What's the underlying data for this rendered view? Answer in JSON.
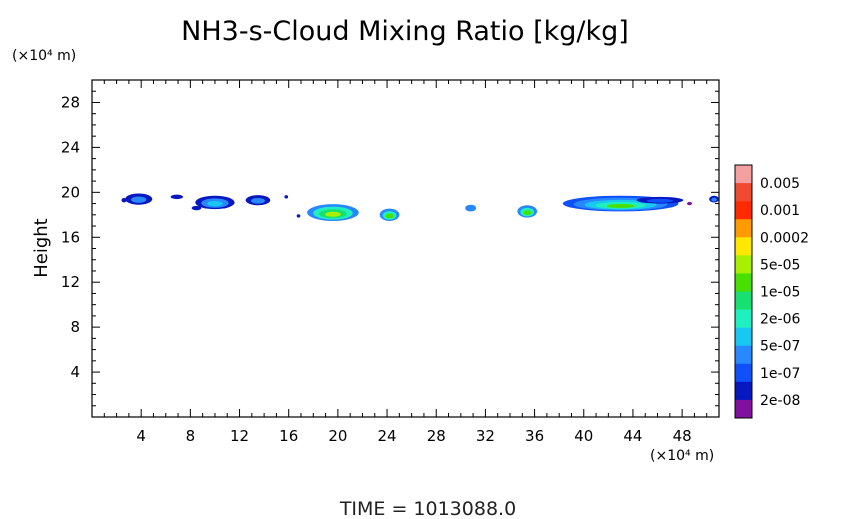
{
  "chart_data": {
    "type": "heatmap",
    "title": "NH3-s-Cloud Mixing Ratio [kg/kg]",
    "ylabel": "Height",
    "y_unit": "(×10⁴ m)",
    "x_unit": "(×10⁴ m)",
    "footer": "TIME  =  1013088.0",
    "xlim": [
      0,
      51
    ],
    "ylim": [
      0,
      30
    ],
    "x_ticks": [
      4,
      8,
      12,
      16,
      20,
      24,
      28,
      32,
      36,
      40,
      44,
      48
    ],
    "y_ticks": [
      4,
      8,
      12,
      16,
      20,
      24,
      28
    ],
    "colorbar": {
      "labels": [
        "0.005",
        "0.001",
        "0.0002",
        "5e-05",
        "1e-05",
        "2e-06",
        "5e-07",
        "1e-07",
        "2e-08"
      ],
      "colors": [
        "#f4a0a0",
        "#f04a30",
        "#ff2a00",
        "#ff9a00",
        "#ffe800",
        "#a8f000",
        "#48e000",
        "#18e070",
        "#20f0c0",
        "#18c8f0",
        "#2888ff",
        "#1050f8",
        "#0818c0",
        "#8010a0"
      ]
    },
    "features": [
      {
        "x": 3.8,
        "y": 19.4,
        "w": 2.2,
        "h": 1.0,
        "levels": [
          "#0818c0",
          "#2888ff"
        ]
      },
      {
        "x": 2.6,
        "y": 19.3,
        "w": 0.4,
        "h": 0.4,
        "levels": [
          "#0818c0"
        ]
      },
      {
        "x": 6.9,
        "y": 19.6,
        "w": 1.0,
        "h": 0.4,
        "levels": [
          "#0818c0"
        ]
      },
      {
        "x": 10.0,
        "y": 19.1,
        "w": 3.2,
        "h": 1.2,
        "levels": [
          "#0818c0",
          "#2888ff",
          "#18c8f0"
        ]
      },
      {
        "x": 8.5,
        "y": 18.6,
        "w": 0.8,
        "h": 0.4,
        "levels": [
          "#0818c0"
        ]
      },
      {
        "x": 13.5,
        "y": 19.3,
        "w": 2.0,
        "h": 0.9,
        "levels": [
          "#0818c0",
          "#2888ff"
        ]
      },
      {
        "x": 15.8,
        "y": 19.6,
        "w": 0.3,
        "h": 0.3,
        "levels": [
          "#0818c0"
        ]
      },
      {
        "x": 19.6,
        "y": 18.2,
        "w": 4.2,
        "h": 1.5,
        "levels": [
          "#2888ff",
          "#20f0c0",
          "#18e070",
          "#a8f000"
        ]
      },
      {
        "x": 16.8,
        "y": 17.9,
        "w": 0.3,
        "h": 0.3,
        "levels": [
          "#0818c0"
        ]
      },
      {
        "x": 24.2,
        "y": 18.0,
        "w": 1.6,
        "h": 1.1,
        "levels": [
          "#2888ff",
          "#20f0c0",
          "#48e000"
        ]
      },
      {
        "x": 30.8,
        "y": 18.6,
        "w": 0.9,
        "h": 0.6,
        "levels": [
          "#2888ff"
        ]
      },
      {
        "x": 35.4,
        "y": 18.3,
        "w": 1.6,
        "h": 1.1,
        "levels": [
          "#2888ff",
          "#20f0c0",
          "#48e000"
        ]
      },
      {
        "x": 43.0,
        "y": 19.0,
        "w": 9.4,
        "h": 1.4,
        "levels": [
          "#1050f8",
          "#2888ff",
          "#18c8f0",
          "#20f0c0",
          "#48e000"
        ]
      },
      {
        "x": 46.2,
        "y": 19.3,
        "w": 3.8,
        "h": 0.6,
        "levels": [
          "#0818c0",
          "#1050f8"
        ]
      },
      {
        "x": 48.6,
        "y": 19.0,
        "w": 0.4,
        "h": 0.3,
        "levels": [
          "#8010a0"
        ]
      },
      {
        "x": 50.6,
        "y": 19.4,
        "w": 0.8,
        "h": 0.6,
        "levels": [
          "#0818c0",
          "#2888ff"
        ]
      }
    ]
  }
}
